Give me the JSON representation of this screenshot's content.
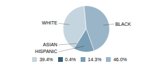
{
  "chart_data": {
    "type": "pie",
    "categories": [
      "WHITE",
      "ASIAN",
      "HISPANIC",
      "BLACK"
    ],
    "values": [
      39.4,
      0.4,
      14.3,
      46.0
    ],
    "value_labels": [
      "39.4%",
      "0.4%",
      "14.3%",
      "46.0%"
    ],
    "colors": [
      "#c5d5e0",
      "#3a5f78",
      "#7a9eb5",
      "#9ab5c8"
    ],
    "legend": "bottom"
  }
}
